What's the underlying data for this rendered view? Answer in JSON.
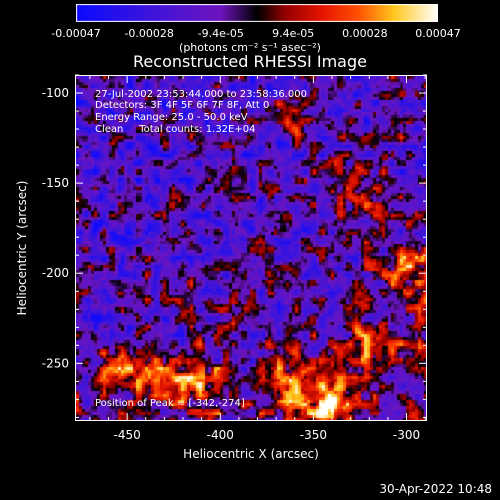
{
  "colorbar": {
    "ticks": [
      "-0.00047",
      "-0.00028",
      "-9.4e-05",
      "9.4e-05",
      "0.00028",
      "0.00047"
    ],
    "unit": "(photons cm⁻² s⁻¹ asec⁻²)"
  },
  "title": "Reconstructed RHESSI Image",
  "annotations": {
    "time_range": "27-Jul-2002 23:53:44.000 to 23:58:36.000",
    "detectors": "Detectors: 3F 4F 5F 6F 7F 8F, Att 0",
    "energy": "Energy Range: 25.0 - 50.0 keV",
    "clean": "Clean     Total counts: 1.32E+04",
    "peak": "Position of Peak = [-342,-274]"
  },
  "footer": "30-Apr-2022 10:48",
  "chart_data": {
    "type": "heatmap",
    "title": "Reconstructed RHESSI Image",
    "xlabel": "Heliocentric X (arcsec)",
    "ylabel": "Heliocentric Y (arcsec)",
    "xlim": [
      -478,
      -289
    ],
    "ylim": [
      -282,
      -90
    ],
    "x_ticks": [
      -450,
      -400,
      -350,
      -300
    ],
    "y_ticks": [
      -100,
      -150,
      -200,
      -250
    ],
    "x_tick_labels": [
      "-450",
      "-400",
      "-350",
      "-300"
    ],
    "y_tick_labels": [
      "-100",
      "-150",
      "-200",
      "-250"
    ],
    "colorbar_range": [
      -0.00047,
      0.00047
    ],
    "peak_position": [
      -342,
      -274
    ],
    "bright_sources": [
      {
        "x": -342,
        "y": -274,
        "value": 0.00047
      },
      {
        "x": -365,
        "y": -262,
        "value": 0.0004
      },
      {
        "x": -410,
        "y": -262,
        "value": 0.0003
      },
      {
        "x": -455,
        "y": -252,
        "value": 0.00035
      },
      {
        "x": -433,
        "y": -258,
        "value": 0.0003
      },
      {
        "x": -300,
        "y": -200,
        "value": 0.0003
      },
      {
        "x": -320,
        "y": -245,
        "value": 0.00035
      },
      {
        "x": -325,
        "y": -150,
        "value": 0.00025
      },
      {
        "x": -360,
        "y": -115,
        "value": 0.0002
      }
    ]
  }
}
